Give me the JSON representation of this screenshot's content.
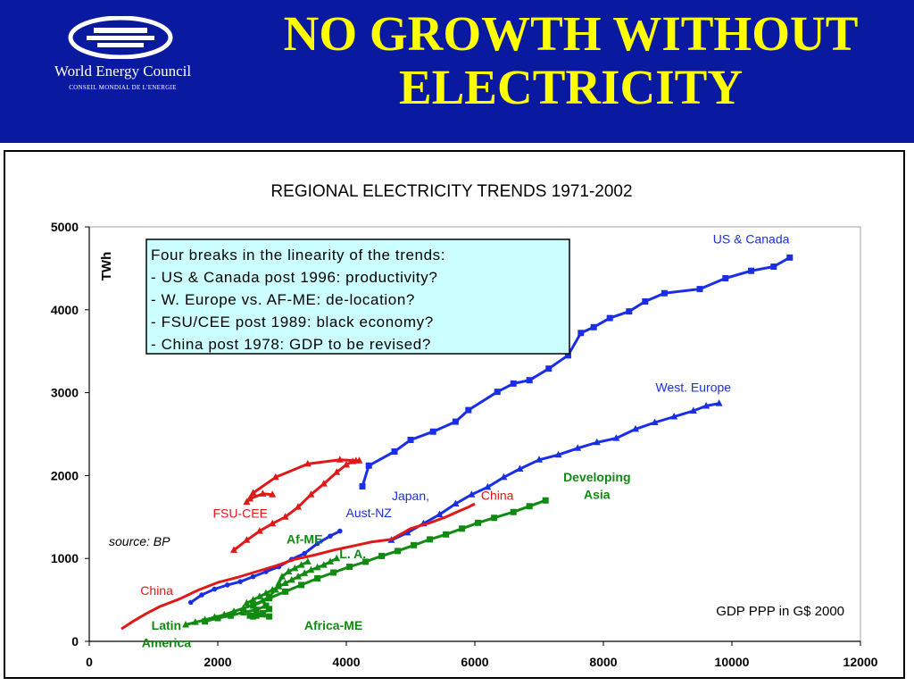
{
  "header": {
    "title_line1": "NO GROWTH WITHOUT",
    "title_line2": "ELECTRICITY",
    "logo_name": "World Energy Council",
    "logo_subtitle": "CONSEIL MONDIAL DE L'ENERGIE"
  },
  "colors": {
    "banner": "#0a1aa0",
    "title": "#ffff00",
    "us_canada": "#1a2ee8",
    "china": "#e01818",
    "green": "#108a10",
    "annotation_box": "#ccffff"
  },
  "chart_data": {
    "type": "line",
    "title": "REGIONAL ELECTRICITY TRENDS 1971-2002",
    "xlabel": "GDP PPP in G$ 2000",
    "ylabel": "TWh",
    "xlim": [
      0,
      12000
    ],
    "ylim": [
      0,
      5000
    ],
    "xticks": [
      "0",
      "2000",
      "4000",
      "6000",
      "8000",
      "10000",
      "12000"
    ],
    "yticks": [
      "0",
      "1000",
      "2000",
      "3000",
      "4000",
      "5000"
    ],
    "grid": false,
    "source": "source: BP",
    "annotation": [
      "Four breaks in the linearity of the trends:",
      "- US & Canada post 1996: productivity?",
      "- W. Europe vs. AF-ME: de-location?",
      "- FSU/CEE post 1989: black economy?",
      "- China post 1978: GDP to be revised?"
    ],
    "series": [
      {
        "label": "US & Canada",
        "color": "#1a2ee8",
        "marker": "square",
        "x": [
          4250,
          4350,
          4750,
          5000,
          5350,
          5700,
          5900,
          6350,
          6600,
          6850,
          7150,
          7450,
          7650,
          7850,
          8100,
          8400,
          8650,
          8950,
          9500,
          9900,
          10300,
          10650,
          10900
        ],
        "y": [
          1870,
          2120,
          2290,
          2430,
          2530,
          2650,
          2790,
          3010,
          3110,
          3150,
          3290,
          3450,
          3720,
          3790,
          3900,
          3980,
          4100,
          4200,
          4250,
          4380,
          4470,
          4520,
          4630
        ]
      },
      {
        "label": "West. Europe",
        "color": "#1a2ee8",
        "marker": "triangle",
        "x": [
          4700,
          4950,
          5200,
          5450,
          5700,
          5950,
          6200,
          6450,
          6700,
          7000,
          7300,
          7600,
          7900,
          8200,
          8500,
          8800,
          9100,
          9400,
          9600,
          9800
        ],
        "y": [
          1220,
          1310,
          1420,
          1530,
          1660,
          1770,
          1860,
          1980,
          2080,
          2190,
          2250,
          2330,
          2400,
          2450,
          2560,
          2640,
          2710,
          2780,
          2840,
          2870
        ]
      },
      {
        "label": "Japan, Aust-NZ",
        "color": "#1a2ee8",
        "marker": "circle",
        "x": [
          1580,
          1750,
          1950,
          2150,
          2350,
          2550,
          2750,
          2950,
          3150,
          3350,
          3550,
          3750,
          3900
        ],
        "y": [
          470,
          560,
          630,
          680,
          720,
          780,
          840,
          900,
          990,
          1060,
          1180,
          1270,
          1330
        ]
      },
      {
        "label": "FSU-CEE",
        "color": "#e01818",
        "marker": "triangle",
        "x": [
          2250,
          2450,
          2650,
          2850,
          3050,
          3250,
          3450,
          3650,
          3850,
          4000,
          4100,
          4200,
          4150,
          3900,
          3400,
          2900,
          2550,
          2450,
          2500,
          2700,
          2850
        ],
        "y": [
          1100,
          1220,
          1330,
          1420,
          1500,
          1620,
          1770,
          1900,
          2040,
          2130,
          2170,
          2180,
          2180,
          2190,
          2140,
          1980,
          1790,
          1680,
          1720,
          1780,
          1770
        ]
      },
      {
        "label": "China",
        "color": "#e01818",
        "marker": "none",
        "x": [
          500,
          700,
          900,
          1100,
          1400,
          1700,
          2000,
          2300,
          2600,
          2900,
          3200,
          3500,
          3800,
          4100,
          4400,
          4700,
          5000,
          5300,
          5550,
          5750,
          5900,
          6000
        ],
        "y": [
          150,
          250,
          340,
          420,
          510,
          620,
          710,
          770,
          840,
          910,
          990,
          1040,
          1100,
          1150,
          1200,
          1230,
          1360,
          1430,
          1500,
          1570,
          1620,
          1660
        ]
      },
      {
        "label": "Developing Asia",
        "color": "#108a10",
        "marker": "square",
        "x": [
          2550,
          2800,
          3050,
          3300,
          3550,
          3800,
          4050,
          4300,
          4550,
          4800,
          5050,
          5300,
          5550,
          5800,
          6050,
          6300,
          6600,
          6850,
          7100
        ],
        "y": [
          430,
          520,
          600,
          680,
          760,
          830,
          900,
          960,
          1030,
          1090,
          1160,
          1230,
          1290,
          1360,
          1430,
          1490,
          1560,
          1630,
          1700
        ]
      },
      {
        "label": "Af-ME",
        "color": "#108a10",
        "marker": "triangle",
        "x": [
          2450,
          2550,
          2650,
          2750,
          2850,
          2950,
          3050,
          3150,
          3250,
          3350,
          3450,
          3550,
          3650,
          3750,
          3850
        ],
        "y": [
          460,
          500,
          540,
          580,
          620,
          660,
          700,
          740,
          780,
          820,
          860,
          890,
          920,
          960,
          1000
        ]
      },
      {
        "label": "L. A.",
        "color": "#108a10",
        "marker": "triangle",
        "x": [
          1500,
          1650,
          1800,
          1950,
          2100,
          2250,
          2400,
          2550,
          2700,
          2800,
          2900,
          2950,
          3000,
          3100,
          3200,
          3300,
          3400
        ],
        "y": [
          200,
          230,
          260,
          290,
          320,
          360,
          400,
          440,
          490,
          540,
          620,
          700,
          780,
          840,
          880,
          920,
          960
        ]
      },
      {
        "label": "Africa-ME",
        "color": "#108a10",
        "marker": "square",
        "x": [
          1800,
          2000,
          2200,
          2400,
          2600,
          2750,
          2800,
          2700,
          2550,
          2500,
          2600,
          2800
        ],
        "y": [
          240,
          280,
          310,
          350,
          380,
          430,
          390,
          340,
          300,
          310,
          310,
          300
        ]
      }
    ],
    "labels": [
      {
        "text": "US & Canada",
        "color": "#1a2ee8",
        "x": 10300,
        "y": 4800,
        "weight": "normal"
      },
      {
        "text": "West. Europe",
        "color": "#1a2ee8",
        "x": 9400,
        "y": 3010,
        "weight": "normal"
      },
      {
        "text": "Japan,",
        "color": "#1a2ee8",
        "x": 5000,
        "y": 1700,
        "weight": "normal"
      },
      {
        "text": "Aust-NZ",
        "color": "#1a2ee8",
        "x": 4350,
        "y": 1500,
        "weight": "normal"
      },
      {
        "text": "China",
        "color": "#e01818",
        "x": 6350,
        "y": 1710,
        "weight": "normal"
      },
      {
        "text": "FSU-CEE",
        "color": "#e01818",
        "x": 2350,
        "y": 1490,
        "weight": "normal"
      },
      {
        "text": "China",
        "color": "#e01818",
        "x": 1050,
        "y": 560,
        "weight": "normal"
      },
      {
        "text": "Developing",
        "color": "#108a10",
        "x": 7900,
        "y": 1930,
        "weight": "bold"
      },
      {
        "text": "Asia",
        "color": "#108a10",
        "x": 7900,
        "y": 1720,
        "weight": "bold"
      },
      {
        "text": "Af-ME",
        "color": "#108a10",
        "x": 3350,
        "y": 1180,
        "weight": "bold"
      },
      {
        "text": "L. A.",
        "color": "#108a10",
        "x": 4100,
        "y": 1000,
        "weight": "bold"
      },
      {
        "text": "Africa-ME",
        "color": "#108a10",
        "x": 3800,
        "y": 140,
        "weight": "bold"
      },
      {
        "text": "Latin",
        "color": "#108a10",
        "x": 1200,
        "y": 140,
        "weight": "bold"
      },
      {
        "text": "America",
        "color": "#108a10",
        "x": 1200,
        "y": -70,
        "weight": "bold"
      }
    ]
  }
}
